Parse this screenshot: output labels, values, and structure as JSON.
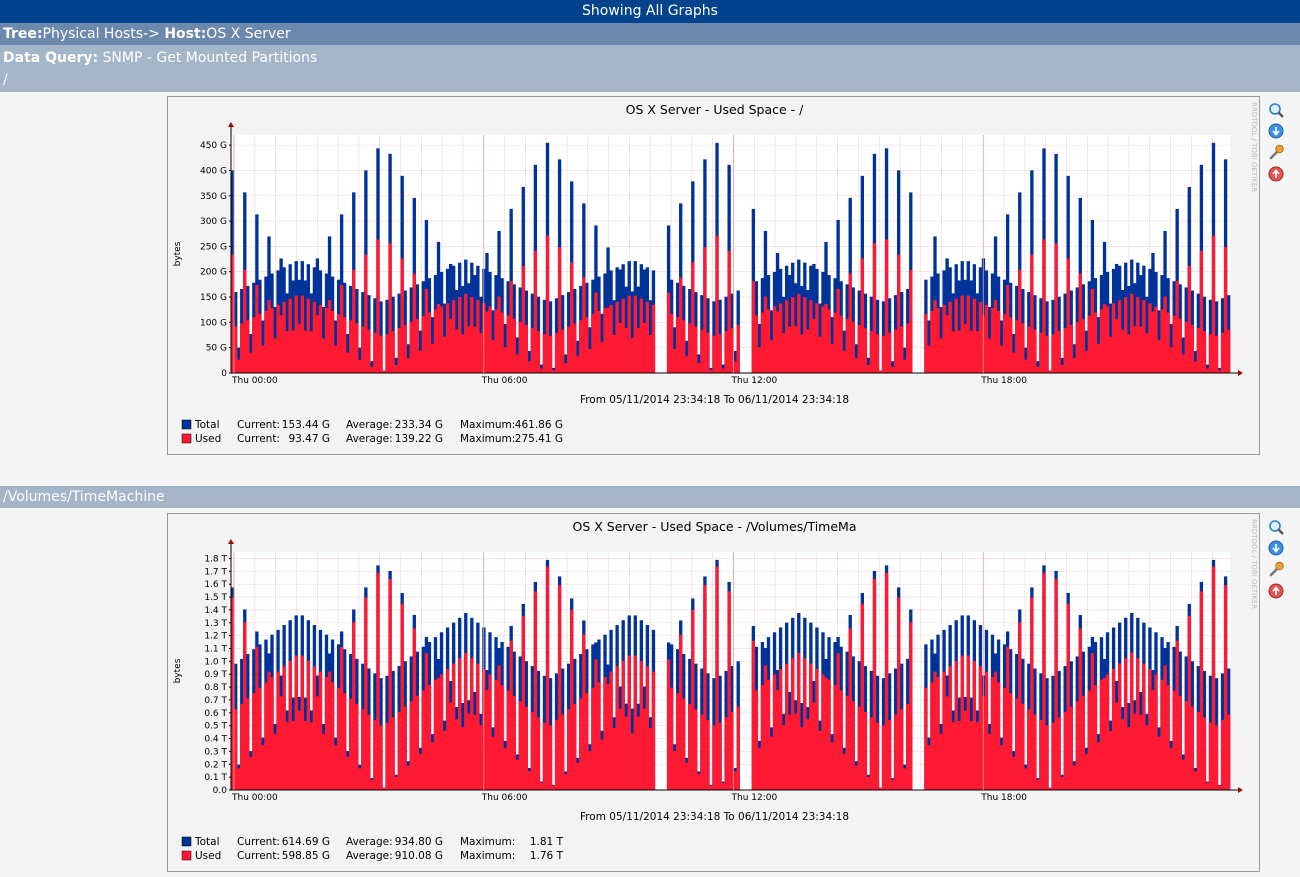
{
  "header": {
    "title": "Showing All Graphs",
    "tree_label": "Tree:",
    "tree_value": "Physical Hosts->",
    "host_label": "Host:",
    "host_value": "OS X Server",
    "query_label": "Data Query:",
    "query_value": "SNMP - Get Mounted Partitions"
  },
  "icons": [
    "zoom-icon",
    "csv-export-icon",
    "properties-wrench-icon",
    "back-to-top-icon"
  ],
  "colors": {
    "total": "#003399",
    "used": "#FF1A33",
    "title_bar": "#00438C",
    "tree_bar": "#6D88AD",
    "section_bar": "#A4B5C9"
  },
  "graphs": [
    {
      "section": "/",
      "title": "OS X Server - Used Space - /",
      "ylabel": "bytes",
      "watermark": "RRDTOOL / TOBI OETIKER",
      "period": "From 05/11/2014 23:34:18 To 06/11/2014 23:34:18",
      "legend": [
        {
          "name": "Total",
          "current_label": "Current:",
          "current": "153.44 G",
          "average_label": "Average:",
          "average": "233.34 G",
          "maximum_label": "Maximum:",
          "maximum": "461.86 G"
        },
        {
          "name": "Used",
          "current_label": "Current:",
          "current": "93.47 G",
          "average_label": "Average:",
          "average": "139.22 G",
          "maximum_label": "Maximum:",
          "maximum": "275.41 G"
        }
      ]
    },
    {
      "section": "/Volumes/TimeMachine",
      "title": "OS X Server - Used Space - /Volumes/TimeMa",
      "ylabel": "bytes",
      "watermark": "RRDTOOL / TOBI OETIKER",
      "period": "From 05/11/2014 23:34:18 To 06/11/2014 23:34:18",
      "legend": [
        {
          "name": "Total",
          "current_label": "Current:",
          "current": "614.69 G",
          "average_label": "Average:",
          "average": "934.80 G",
          "maximum_label": "Maximum:",
          "maximum": "1.81 T"
        },
        {
          "name": "Used",
          "current_label": "Current:",
          "current": "598.85 G",
          "average_label": "Average:",
          "average": "910.08 G",
          "maximum_label": "Maximum:",
          "maximum": "1.76 T"
        }
      ]
    }
  ],
  "chart_data": [
    {
      "type": "area",
      "title": "OS X Server - Used Space - /",
      "ylabel": "bytes",
      "ylim": [
        0,
        470
      ],
      "y_unit": "G",
      "yticks": [
        0,
        50,
        100,
        150,
        200,
        250,
        300,
        350,
        400,
        450
      ],
      "ytick_labels": [
        "0",
        "50 G",
        "100 G",
        "150 G",
        "200 G",
        "250 G",
        "300 G",
        "350 G",
        "400 G",
        "450 G"
      ],
      "x_ticks": [
        "Thu 00:00",
        "Thu 06:00",
        "Thu 12:00",
        "Thu 18:00"
      ],
      "grid": true,
      "series": [
        {
          "name": "Total",
          "peak": 460,
          "trough": 0,
          "base": 140,
          "floor": 0
        },
        {
          "name": "Used",
          "peak": 275,
          "trough": 0,
          "base": 120,
          "floor": 0
        }
      ],
      "pattern": {
        "cycles": 6,
        "points": 330,
        "gaps": [
          0.43,
          0.515,
          0.6875
        ]
      }
    },
    {
      "type": "area",
      "title": "OS X Server - Used Space - /Volumes/TimeMa",
      "ylabel": "bytes",
      "ylim": [
        0,
        1.85
      ],
      "y_unit": "T",
      "yticks": [
        0,
        0.1,
        0.2,
        0.3,
        0.4,
        0.5,
        0.6,
        0.7,
        0.8,
        0.9,
        1.0,
        1.1,
        1.2,
        1.3,
        1.4,
        1.5,
        1.6,
        1.7,
        1.8
      ],
      "ytick_labels": [
        "0.0",
        "0.1 T",
        "0.2 T",
        "0.3 T",
        "0.4 T",
        "0.5 T",
        "0.6 T",
        "0.7 T",
        "0.8 T",
        "0.9 T",
        "1.0 T",
        "1.1 T",
        "1.2 T",
        "1.3 T",
        "1.4 T",
        "1.5 T",
        "1.6 T",
        "1.7 T",
        "1.8 T"
      ],
      "x_ticks": [
        "Thu 00:00",
        "Thu 06:00",
        "Thu 12:00",
        "Thu 18:00"
      ],
      "grid": true,
      "series": [
        {
          "name": "Total",
          "peak": 1.81,
          "trough": 0,
          "base": 0.86,
          "floor": 0
        },
        {
          "name": "Used",
          "peak": 1.76,
          "trough": 0,
          "base": 0.82,
          "floor": 0
        }
      ],
      "pattern": {
        "cycles": 6,
        "points": 330,
        "gaps": [
          0.43,
          0.515,
          0.6875
        ]
      }
    }
  ]
}
